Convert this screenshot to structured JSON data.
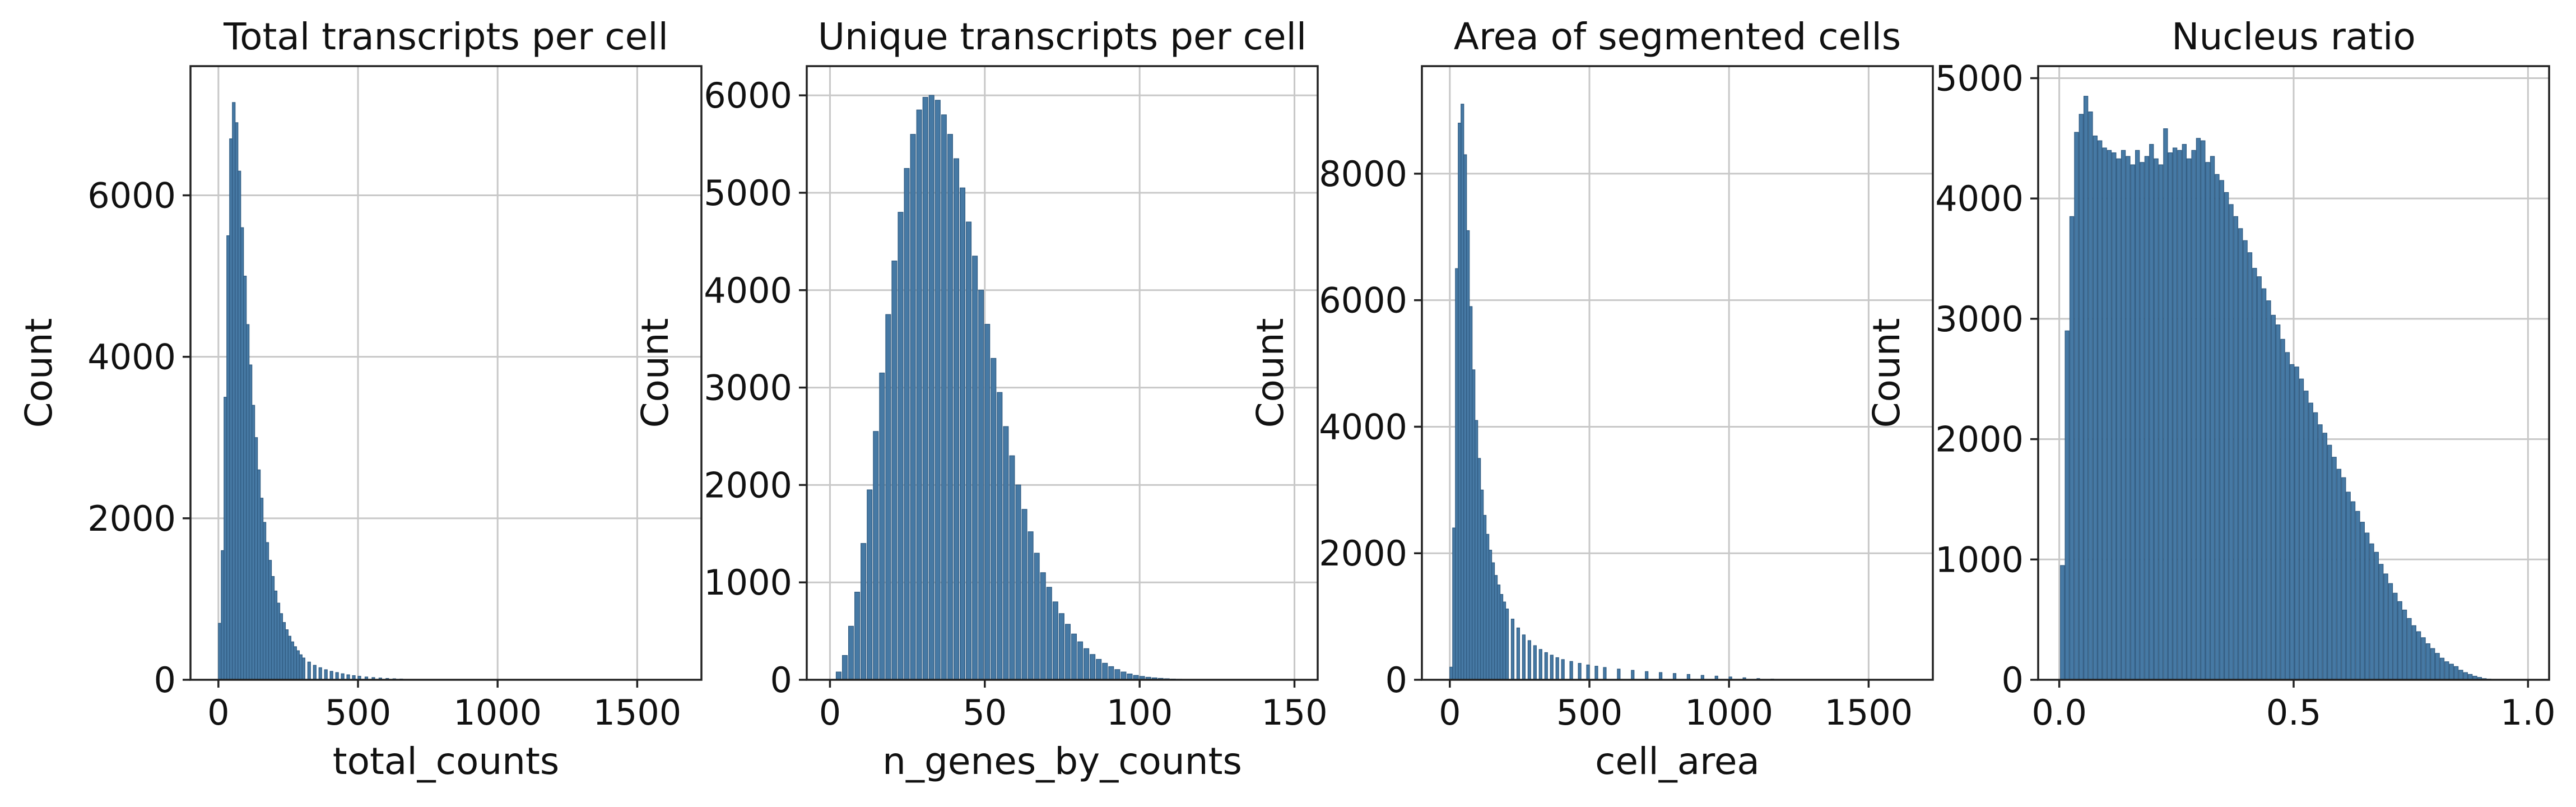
{
  "colors": {
    "bar_fill": "#4679a4",
    "bar_edge": "#2f5a80",
    "grid": "#c8c8c8",
    "frame": "#222222"
  },
  "chart_data": [
    {
      "type": "bar",
      "title": "Total transcripts per cell",
      "xlabel": "total_counts",
      "ylabel": "Count",
      "xlim": [
        -100,
        1730
      ],
      "ylim": [
        0,
        7600
      ],
      "xticks": [
        0,
        500,
        1000,
        1500
      ],
      "yticks": [
        0,
        2000,
        4000,
        6000
      ],
      "xtick_labels": [
        "0",
        "500",
        "1000",
        "1500"
      ],
      "ytick_labels": [
        "0",
        "2000",
        "4000",
        "6000"
      ],
      "grid": true,
      "bins": {
        "x": [
          0,
          10,
          20,
          30,
          40,
          50,
          60,
          70,
          80,
          90,
          100,
          110,
          120,
          130,
          140,
          150,
          160,
          170,
          180,
          190,
          200,
          210,
          220,
          230,
          240,
          250,
          260,
          270,
          280,
          290,
          300,
          320,
          340,
          360,
          380,
          400,
          420,
          440,
          460,
          480,
          500,
          525,
          550,
          575,
          600,
          625,
          650,
          700,
          750
        ],
        "width": 10,
        "counts": [
          700,
          1600,
          3500,
          5500,
          6700,
          7150,
          6900,
          6300,
          5600,
          5000,
          4400,
          3900,
          3400,
          3000,
          2600,
          2250,
          1950,
          1700,
          1480,
          1280,
          1100,
          950,
          820,
          710,
          620,
          540,
          470,
          410,
          360,
          310,
          270,
          220,
          180,
          150,
          125,
          105,
          90,
          75,
          62,
          52,
          44,
          35,
          28,
          22,
          17,
          13,
          10,
          6,
          3
        ]
      }
    },
    {
      "type": "bar",
      "title": "Unique transcripts per cell",
      "xlabel": "n_genes_by_counts",
      "ylabel": "Count",
      "xlim": [
        -7.5,
        157.5
      ],
      "ylim": [
        0,
        6300
      ],
      "xticks": [
        0,
        50,
        100,
        150
      ],
      "yticks": [
        0,
        1000,
        2000,
        3000,
        4000,
        5000,
        6000
      ],
      "xtick_labels": [
        "0",
        "50",
        "100",
        "150"
      ],
      "ytick_labels": [
        "0",
        "1000",
        "2000",
        "3000",
        "4000",
        "5000",
        "6000"
      ],
      "grid": true,
      "bins": {
        "x": [
          2,
          4,
          6,
          8,
          10,
          12,
          14,
          16,
          18,
          20,
          22,
          24,
          26,
          28,
          30,
          32,
          34,
          36,
          38,
          40,
          42,
          44,
          46,
          48,
          50,
          52,
          54,
          56,
          58,
          60,
          62,
          64,
          66,
          68,
          70,
          72,
          74,
          76,
          78,
          80,
          82,
          84,
          86,
          88,
          90,
          92,
          94,
          96,
          98,
          100,
          102,
          104,
          106,
          108,
          110,
          112,
          114,
          116,
          118,
          120,
          122,
          124,
          126,
          128,
          130
        ],
        "width": 1.6,
        "counts": [
          80,
          250,
          550,
          900,
          1400,
          1950,
          2550,
          3150,
          3750,
          4300,
          4800,
          5250,
          5600,
          5850,
          5980,
          6000,
          5950,
          5800,
          5600,
          5350,
          5050,
          4700,
          4350,
          4000,
          3650,
          3300,
          2950,
          2600,
          2300,
          2000,
          1750,
          1520,
          1300,
          1100,
          950,
          800,
          680,
          570,
          470,
          390,
          320,
          260,
          210,
          170,
          135,
          105,
          80,
          60,
          45,
          35,
          26,
          20,
          15,
          11,
          8,
          6,
          5,
          4,
          3,
          2,
          2,
          1,
          1,
          1,
          1
        ]
      }
    },
    {
      "type": "bar",
      "title": "Area of segmented cells",
      "xlabel": "cell_area",
      "ylabel": "Count",
      "xlim": [
        -100,
        1730
      ],
      "ylim": [
        0,
        9700
      ],
      "xticks": [
        0,
        500,
        1000,
        1500
      ],
      "yticks": [
        0,
        2000,
        4000,
        6000,
        8000
      ],
      "xtick_labels": [
        "0",
        "500",
        "1000",
        "1500"
      ],
      "ytick_labels": [
        "0",
        "2000",
        "4000",
        "6000",
        "8000"
      ],
      "grid": true,
      "bins": {
        "x": [
          0,
          10,
          20,
          30,
          40,
          50,
          60,
          70,
          80,
          90,
          100,
          110,
          120,
          130,
          140,
          150,
          160,
          170,
          180,
          190,
          200,
          220,
          240,
          260,
          280,
          300,
          320,
          340,
          360,
          380,
          400,
          430,
          460,
          490,
          520,
          550,
          600,
          650,
          700,
          750,
          800,
          850,
          900,
          950,
          1000,
          1050,
          1100,
          1150,
          1200,
          1250
        ],
        "width": 10,
        "counts": [
          200,
          2400,
          6500,
          8800,
          9100,
          8300,
          7100,
          5900,
          4900,
          4100,
          3500,
          3000,
          2600,
          2300,
          2050,
          1850,
          1650,
          1500,
          1350,
          1230,
          1120,
          960,
          820,
          710,
          620,
          540,
          480,
          430,
          390,
          350,
          320,
          290,
          260,
          235,
          215,
          195,
          170,
          150,
          130,
          115,
          100,
          85,
          70,
          58,
          45,
          32,
          20,
          12,
          6,
          3
        ]
      }
    },
    {
      "type": "bar",
      "title": "Nucleus ratio",
      "xlabel": "",
      "ylabel": "Count",
      "xlim": [
        -0.045,
        1.045
      ],
      "ylim": [
        0,
        5100
      ],
      "xticks": [
        0,
        0.5,
        1
      ],
      "yticks": [
        0,
        1000,
        2000,
        3000,
        4000,
        5000
      ],
      "xtick_labels": [
        "0.0",
        "0.5",
        "1.0"
      ],
      "ytick_labels": [
        "0",
        "1000",
        "2000",
        "3000",
        "4000",
        "5000"
      ],
      "grid": true,
      "bins": {
        "x": [
          0.0025,
          0.0125,
          0.0225,
          0.0325,
          0.0425,
          0.0525,
          0.0625,
          0.0725,
          0.0825,
          0.0925,
          0.1025,
          0.1125,
          0.1225,
          0.1325,
          0.1425,
          0.1525,
          0.1625,
          0.1725,
          0.1825,
          0.1925,
          0.2025,
          0.2125,
          0.2225,
          0.2325,
          0.2425,
          0.2525,
          0.2625,
          0.2725,
          0.2825,
          0.2925,
          0.3025,
          0.3125,
          0.3225,
          0.3325,
          0.3425,
          0.3525,
          0.3625,
          0.3725,
          0.3825,
          0.3925,
          0.4025,
          0.4125,
          0.4225,
          0.4325,
          0.4425,
          0.4525,
          0.4625,
          0.4725,
          0.4825,
          0.4925,
          0.5025,
          0.5125,
          0.5225,
          0.5325,
          0.5425,
          0.5525,
          0.5625,
          0.5725,
          0.5825,
          0.5925,
          0.6025,
          0.6125,
          0.6225,
          0.6325,
          0.6425,
          0.6525,
          0.6625,
          0.6725,
          0.6825,
          0.6925,
          0.7025,
          0.7125,
          0.7225,
          0.7325,
          0.7425,
          0.7525,
          0.7625,
          0.7725,
          0.7825,
          0.7925,
          0.8025,
          0.8125,
          0.8225,
          0.8325,
          0.8425,
          0.8525,
          0.8625,
          0.8725,
          0.8825,
          0.8925,
          0.9025,
          0.9125,
          0.9225,
          0.9325,
          0.9425,
          0.9525,
          0.9625,
          0.9725,
          0.9825
        ],
        "width": 0.0085,
        "counts": [
          950,
          2900,
          3850,
          4550,
          4700,
          4850,
          4720,
          4520,
          4480,
          4420,
          4400,
          4380,
          4330,
          4400,
          4350,
          4280,
          4400,
          4300,
          4350,
          4450,
          4330,
          4280,
          4580,
          4380,
          4420,
          4400,
          4450,
          4330,
          4400,
          4500,
          4480,
          4300,
          4350,
          4200,
          4150,
          4050,
          3950,
          3850,
          3750,
          3650,
          3550,
          3420,
          3350,
          3250,
          3150,
          3030,
          2950,
          2830,
          2720,
          2620,
          2600,
          2500,
          2400,
          2300,
          2220,
          2120,
          2050,
          1950,
          1850,
          1750,
          1680,
          1560,
          1480,
          1400,
          1310,
          1220,
          1130,
          1060,
          960,
          880,
          800,
          720,
          650,
          580,
          510,
          450,
          400,
          350,
          300,
          260,
          220,
          180,
          150,
          130,
          110,
          80,
          60,
          45,
          30,
          20,
          10,
          6,
          4,
          3,
          2,
          1,
          1,
          1,
          1
        ]
      }
    }
  ]
}
